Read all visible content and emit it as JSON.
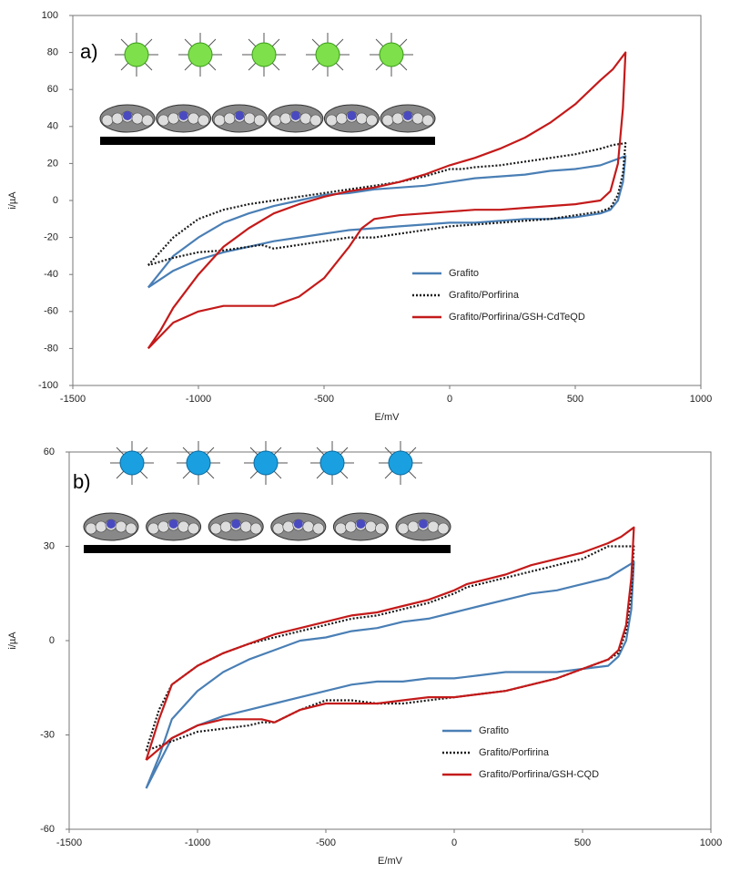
{
  "chart_data": [
    {
      "type": "line",
      "annotation": "a)",
      "xlabel": "E/mV",
      "ylabel": "i/µA",
      "xlim": [
        -1500,
        1000
      ],
      "xticks": [
        -1500,
        -1000,
        -500,
        0,
        500,
        1000
      ],
      "ylim": [
        -100,
        100
      ],
      "yticks": [
        -100,
        -80,
        -60,
        -40,
        -20,
        0,
        20,
        40,
        60,
        80,
        100
      ],
      "grid": false,
      "legend": "lower right",
      "series": [
        {
          "name": "Grafito",
          "color": "#4a7fb5",
          "dash": false,
          "x": [
            -1200,
            -1100,
            -1000,
            -900,
            -800,
            -700,
            -600,
            -500,
            -400,
            -300,
            -200,
            -100,
            0,
            100,
            200,
            300,
            400,
            500,
            600,
            700,
            690,
            670,
            640,
            600,
            500,
            400,
            300,
            200,
            100,
            0,
            -100,
            -200,
            -300,
            -400,
            -500,
            -600,
            -700,
            -800,
            -900,
            -1000,
            -1100,
            -1200
          ],
          "values": [
            -47,
            -30,
            -20,
            -12,
            -7,
            -3,
            0,
            3,
            4,
            6,
            7,
            8,
            10,
            12,
            13,
            14,
            16,
            17,
            19,
            24,
            10,
            0,
            -5,
            -7,
            -9,
            -10,
            -10,
            -11,
            -12,
            -12,
            -13,
            -14,
            -15,
            -16,
            -18,
            -20,
            -22,
            -25,
            -28,
            -32,
            -38,
            -47
          ]
        },
        {
          "name": "Grafito/Porfirina",
          "color": "#1a1a1a",
          "dash": true,
          "x": [
            -1200,
            -1100,
            -1000,
            -900,
            -800,
            -700,
            -600,
            -500,
            -400,
            -300,
            -200,
            -100,
            0,
            50,
            100,
            200,
            300,
            400,
            500,
            600,
            650,
            700,
            690,
            670,
            640,
            600,
            500,
            400,
            300,
            200,
            100,
            0,
            -100,
            -200,
            -300,
            -400,
            -500,
            -600,
            -700,
            -750,
            -800,
            -900,
            -1000,
            -1100,
            -1200
          ],
          "values": [
            -35,
            -20,
            -10,
            -5,
            -2,
            0,
            2,
            4,
            6,
            8,
            10,
            13,
            17,
            17,
            18,
            19,
            21,
            23,
            25,
            28,
            30,
            31,
            15,
            3,
            -4,
            -6,
            -8,
            -10,
            -11,
            -12,
            -13,
            -14,
            -16,
            -18,
            -20,
            -20,
            -22,
            -24,
            -26,
            -24,
            -25,
            -27,
            -28,
            -31,
            -35
          ]
        },
        {
          "name": "Grafito/Porfirina/GSH-CdTeQD",
          "color": "#c41a1a",
          "dash": false,
          "x": [
            -1200,
            -1150,
            -1100,
            -1000,
            -900,
            -800,
            -700,
            -600,
            -500,
            -400,
            -300,
            -200,
            -100,
            0,
            100,
            200,
            300,
            400,
            500,
            600,
            650,
            700,
            690,
            670,
            640,
            600,
            500,
            400,
            300,
            200,
            100,
            0,
            -100,
            -200,
            -300,
            -350,
            -400,
            -500,
            -600,
            -700,
            -800,
            -900,
            -1000,
            -1100,
            -1200
          ],
          "values": [
            -80,
            -70,
            -58,
            -40,
            -25,
            -15,
            -7,
            -2,
            2,
            5,
            7,
            10,
            14,
            19,
            23,
            28,
            34,
            42,
            52,
            65,
            71,
            80,
            50,
            20,
            5,
            0,
            -2,
            -3,
            -4,
            -5,
            -5,
            -6,
            -7,
            -8,
            -10,
            -15,
            -25,
            -42,
            -52,
            -57,
            -57,
            -57,
            -60,
            -66,
            -80
          ]
        }
      ]
    },
    {
      "type": "line",
      "annotation": "b)",
      "xlabel": "E/mV",
      "ylabel": "i/µA",
      "xlim": [
        -1500,
        1000
      ],
      "xticks": [
        -1500,
        -1000,
        -500,
        0,
        500,
        1000
      ],
      "ylim": [
        -60,
        60
      ],
      "yticks": [
        -60,
        -30,
        0,
        30,
        60
      ],
      "grid": false,
      "legend": "lower right",
      "series": [
        {
          "name": "Grafito",
          "color": "#4a7fb5",
          "dash": false,
          "x": [
            -1200,
            -1150,
            -1100,
            -1000,
            -900,
            -800,
            -700,
            -600,
            -500,
            -400,
            -300,
            -200,
            -100,
            0,
            100,
            200,
            300,
            400,
            500,
            600,
            700,
            690,
            670,
            640,
            600,
            500,
            400,
            300,
            200,
            100,
            0,
            -100,
            -200,
            -300,
            -400,
            -500,
            -600,
            -700,
            -800,
            -900,
            -1000,
            -1100,
            -1200
          ],
          "values": [
            -47,
            -37,
            -25,
            -16,
            -10,
            -6,
            -3,
            0,
            1,
            3,
            4,
            6,
            7,
            9,
            11,
            13,
            15,
            16,
            18,
            20,
            25,
            10,
            0,
            -5,
            -8,
            -9,
            -10,
            -10,
            -10,
            -11,
            -12,
            -12,
            -13,
            -13,
            -14,
            -16,
            -18,
            -20,
            -22,
            -24,
            -27,
            -31,
            -47
          ]
        },
        {
          "name": "Grafito/Porfirina",
          "color": "#1a1a1a",
          "dash": true,
          "x": [
            -1200,
            -1150,
            -1100,
            -1000,
            -900,
            -800,
            -700,
            -600,
            -500,
            -400,
            -300,
            -200,
            -100,
            0,
            50,
            100,
            200,
            300,
            400,
            500,
            600,
            650,
            700,
            690,
            670,
            640,
            600,
            500,
            400,
            300,
            200,
            100,
            0,
            -100,
            -200,
            -300,
            -400,
            -500,
            -600,
            -700,
            -750,
            -800,
            -900,
            -1000,
            -1100,
            -1200
          ],
          "values": [
            -35,
            -22,
            -14,
            -8,
            -4,
            -1,
            1,
            3,
            5,
            7,
            8,
            10,
            12,
            15,
            17,
            18,
            20,
            22,
            24,
            26,
            30,
            30,
            30,
            15,
            3,
            -4,
            -6,
            -9,
            -12,
            -14,
            -16,
            -17,
            -18,
            -19,
            -20,
            -20,
            -19,
            -19,
            -22,
            -26,
            -26,
            -27,
            -28,
            -29,
            -32,
            -35
          ]
        },
        {
          "name": "Grafito/Porfirina/GSH-CQD",
          "color": "#c41a1a",
          "dash": false,
          "x": [
            -1200,
            -1150,
            -1100,
            -1000,
            -900,
            -800,
            -700,
            -600,
            -500,
            -400,
            -300,
            -200,
            -100,
            0,
            50,
            100,
            200,
            300,
            400,
            500,
            600,
            650,
            700,
            690,
            670,
            640,
            600,
            500,
            400,
            300,
            200,
            100,
            0,
            -100,
            -200,
            -300,
            -400,
            -500,
            -600,
            -700,
            -750,
            -800,
            -900,
            -1000,
            -1100,
            -1200
          ],
          "values": [
            -38,
            -25,
            -14,
            -8,
            -4,
            -1,
            2,
            4,
            6,
            8,
            9,
            11,
            13,
            16,
            18,
            19,
            21,
            24,
            26,
            28,
            31,
            33,
            36,
            20,
            5,
            -3,
            -6,
            -9,
            -12,
            -14,
            -16,
            -17,
            -18,
            -18,
            -19,
            -20,
            -20,
            -20,
            -22,
            -26,
            -25,
            -25,
            -25,
            -27,
            -31,
            -38
          ]
        }
      ]
    }
  ]
}
